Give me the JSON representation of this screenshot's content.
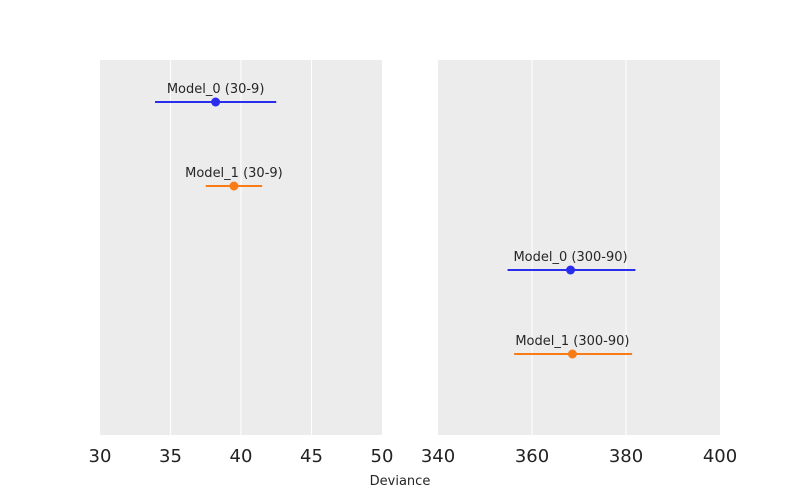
{
  "chart_data": {
    "type": "scatter",
    "xlabel": "Deviance",
    "grid": true,
    "panels": [
      {
        "xlim": [
          30,
          50
        ],
        "xticks": [
          30,
          35,
          40,
          45,
          50
        ],
        "points": [
          {
            "label": "Model_0 (30-9)",
            "value": 38.2,
            "low": 33.9,
            "high": 42.5,
            "color": "#2a2eec"
          },
          {
            "label": "Model_1 (30-9)",
            "value": 39.5,
            "low": 37.5,
            "high": 41.5,
            "color": "#fa7c17"
          }
        ]
      },
      {
        "xlim": [
          340,
          400
        ],
        "xticks": [
          340,
          360,
          380,
          400
        ],
        "points": [
          {
            "label": "Model_0 (300-90)",
            "value": 368.2,
            "low": 354.8,
            "high": 382.0,
            "color": "#2a2eec"
          },
          {
            "label": "Model_1 (300-90)",
            "value": 368.6,
            "low": 356.2,
            "high": 381.3,
            "color": "#fa7c17"
          }
        ]
      }
    ]
  }
}
